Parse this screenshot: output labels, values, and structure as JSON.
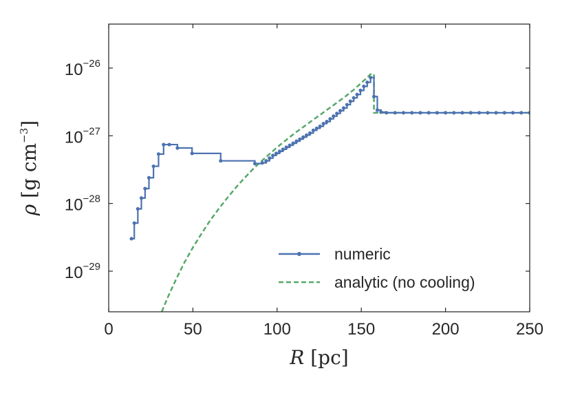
{
  "chart_data": {
    "type": "line",
    "xlabel": "R [pc]",
    "ylabel": "ρ [g cm⁻³]",
    "xlim": [
      0,
      250
    ],
    "ylim_log10": [
      -29.6,
      -25.35
    ],
    "yscale": "log",
    "xticks": [
      0,
      50,
      100,
      150,
      200,
      250
    ],
    "xtick_labels": [
      "0",
      "50",
      "100",
      "150",
      "200",
      "250"
    ],
    "yticks": [
      {
        "base": "10",
        "exp": "-26",
        "value": -26
      },
      {
        "base": "10",
        "exp": "-27",
        "value": -27
      },
      {
        "base": "10",
        "exp": "-28",
        "value": -28
      },
      {
        "base": "10",
        "exp": "-29",
        "value": -29
      }
    ],
    "grid": false,
    "legend_position": "bottom-right",
    "series": [
      {
        "name": "numeric",
        "style": "steps-markers",
        "color": "#4c72b0",
        "points": [
          [
            13.5,
            -28.52
          ],
          [
            15.2,
            -28.29
          ],
          [
            17.3,
            -28.08
          ],
          [
            19.4,
            -27.92
          ],
          [
            21.6,
            -27.78
          ],
          [
            23.9,
            -27.62
          ],
          [
            26.6,
            -27.45
          ],
          [
            29.6,
            -27.27
          ],
          [
            32.6,
            -27.13
          ],
          [
            36.0,
            -27.13
          ],
          [
            40.8,
            -27.18
          ],
          [
            49.5,
            -27.26
          ],
          [
            66.5,
            -27.37
          ],
          [
            86.8,
            -27.41
          ],
          [
            91.2,
            -27.4
          ],
          [
            93.5,
            -27.37
          ],
          [
            95.5,
            -27.33
          ],
          [
            97.5,
            -27.29
          ],
          [
            99.5,
            -27.26
          ],
          [
            101.5,
            -27.23
          ],
          [
            103.5,
            -27.2
          ],
          [
            105.5,
            -27.17
          ],
          [
            107.5,
            -27.14
          ],
          [
            109.5,
            -27.11
          ],
          [
            111.5,
            -27.08
          ],
          [
            113.5,
            -27.05
          ],
          [
            115.5,
            -27.02
          ],
          [
            117.5,
            -26.99
          ],
          [
            119.5,
            -26.96
          ],
          [
            121.5,
            -26.92
          ],
          [
            123.5,
            -26.89
          ],
          [
            125.5,
            -26.86
          ],
          [
            127.5,
            -26.82
          ],
          [
            129.5,
            -26.79
          ],
          [
            131.5,
            -26.75
          ],
          [
            133.5,
            -26.71
          ],
          [
            135.5,
            -26.67
          ],
          [
            137.5,
            -26.63
          ],
          [
            139.5,
            -26.59
          ],
          [
            141.5,
            -26.54
          ],
          [
            143.5,
            -26.49
          ],
          [
            145.5,
            -26.44
          ],
          [
            147.5,
            -26.39
          ],
          [
            149.5,
            -26.33
          ],
          [
            151.5,
            -26.27
          ],
          [
            153.5,
            -26.21
          ],
          [
            155.5,
            -26.14
          ],
          [
            157.5,
            -26.42
          ],
          [
            159.5,
            -26.62
          ],
          [
            161.7,
            -26.65
          ],
          [
            165,
            -26.66
          ],
          [
            170,
            -26.66
          ],
          [
            175,
            -26.66
          ],
          [
            180,
            -26.66
          ],
          [
            185,
            -26.66
          ],
          [
            190,
            -26.66
          ],
          [
            195,
            -26.66
          ],
          [
            200,
            -26.66
          ],
          [
            205,
            -26.66
          ],
          [
            210,
            -26.66
          ],
          [
            215,
            -26.66
          ],
          [
            220,
            -26.66
          ],
          [
            225,
            -26.66
          ],
          [
            230,
            -26.66
          ],
          [
            235,
            -26.66
          ],
          [
            240,
            -26.66
          ],
          [
            245,
            -26.66
          ],
          [
            250,
            -26.66
          ]
        ]
      },
      {
        "name": "analytic (no cooling)",
        "style": "dashed",
        "color": "#55a868",
        "points": [
          [
            31.5,
            -29.6
          ],
          [
            35,
            -29.39
          ],
          [
            40,
            -29.12
          ],
          [
            45,
            -28.87
          ],
          [
            50,
            -28.65
          ],
          [
            55,
            -28.45
          ],
          [
            60,
            -28.26
          ],
          [
            65,
            -28.09
          ],
          [
            70,
            -27.93
          ],
          [
            75,
            -27.78
          ],
          [
            80,
            -27.64
          ],
          [
            85,
            -27.51
          ],
          [
            90,
            -27.39
          ],
          [
            95,
            -27.28
          ],
          [
            100,
            -27.17
          ],
          [
            105,
            -27.07
          ],
          [
            110,
            -26.97
          ],
          [
            115,
            -26.88
          ],
          [
            120,
            -26.79
          ],
          [
            125,
            -26.7
          ],
          [
            130,
            -26.61
          ],
          [
            135,
            -26.52
          ],
          [
            140,
            -26.43
          ],
          [
            145,
            -26.33
          ],
          [
            150,
            -26.22
          ],
          [
            153,
            -26.15
          ],
          [
            155.5,
            -26.09
          ],
          [
            157.5,
            -26.09
          ],
          [
            157.5,
            -26.66
          ],
          [
            250,
            -26.66
          ]
        ]
      }
    ]
  }
}
